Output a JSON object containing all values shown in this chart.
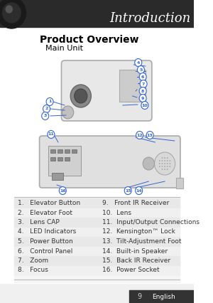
{
  "bg_color": "#ffffff",
  "header_bg": "#2a2a2a",
  "header_text": "Introduction",
  "header_text_color": "#ffffff",
  "header_italic": true,
  "title": "Product Overview",
  "subtitle": "Main Unit",
  "title_color": "#000000",
  "subtitle_color": "#222222",
  "table_bg_light": "#e8e8e8",
  "table_bg_white": "#ffffff",
  "table_border": "#cccccc",
  "items_left": [
    "1.   Elevator Button",
    "2.   Elevator Foot",
    "3.   Lens CAP",
    "4.   LED Indicators",
    "5.   Power Button",
    "6.   Control Panel",
    "7.   Zoom",
    "8.   Focus"
  ],
  "items_right": [
    "9.   Front IR Receiver",
    "10.  Lens",
    "11.  Input/Output Connections",
    "12.  Kensington™ Lock",
    "13.  Tilt-Adjustment Foot",
    "14.  Built-in Speaker",
    "15.  Back IR Receiver",
    "16.  Power Socket"
  ],
  "footer_text": "9",
  "footer_label": "English",
  "footer_bg": "#333333",
  "footer_text_color": "#ffffff",
  "item_text_color": "#333333",
  "item_fontsize": 6.5,
  "page_num_color": "#aaaaaa"
}
